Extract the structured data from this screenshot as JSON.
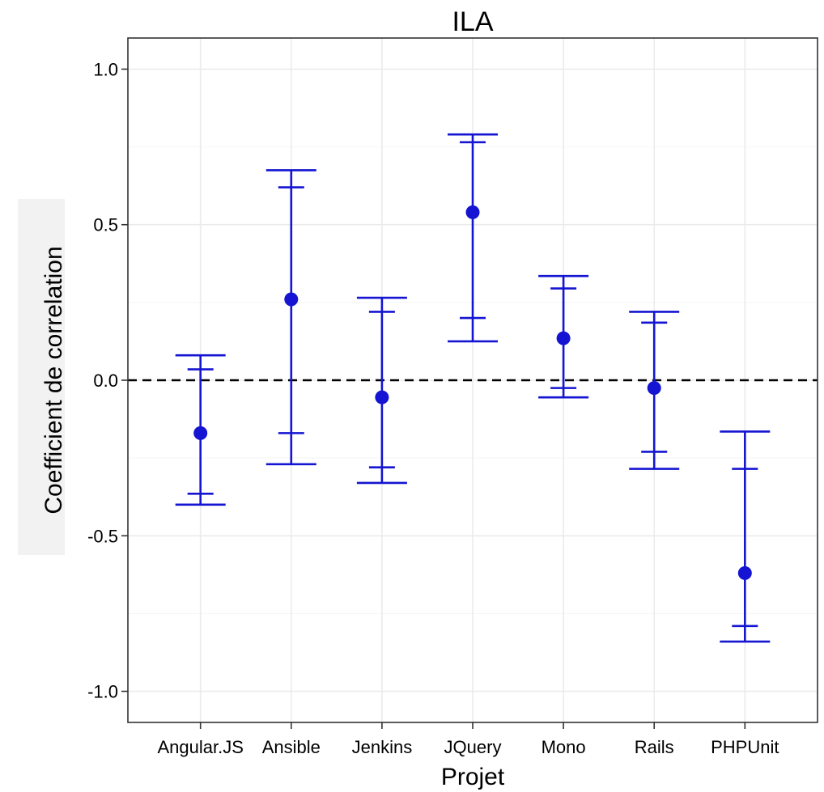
{
  "chart_data": {
    "type": "errorbar",
    "title": "ILA",
    "xlabel": "Projet",
    "ylabel": "Coefficient de correlation",
    "ylim": [
      -1.1,
      1.1
    ],
    "yticks": [
      -1.0,
      -0.5,
      0.0,
      0.5,
      1.0
    ],
    "ytick_labels": [
      "-1.0",
      "-0.5",
      "0.0",
      "0.5",
      "1.0"
    ],
    "reference_line": 0.0,
    "grid": true,
    "categories": [
      "Angular.JS",
      "Ansible",
      "Jenkins",
      "JQuery",
      "Mono",
      "Rails",
      "PHPUnit"
    ],
    "points": [
      {
        "category": "Angular.JS",
        "value": -0.17,
        "inner": [
          -0.365,
          0.035
        ],
        "outer": [
          -0.4,
          0.08
        ]
      },
      {
        "category": "Ansible",
        "value": 0.26,
        "inner": [
          -0.17,
          0.62
        ],
        "outer": [
          -0.27,
          0.675
        ]
      },
      {
        "category": "Jenkins",
        "value": -0.055,
        "inner": [
          -0.28,
          0.22
        ],
        "outer": [
          -0.33,
          0.265
        ]
      },
      {
        "category": "JQuery",
        "value": 0.54,
        "inner": [
          0.2,
          0.765
        ],
        "outer": [
          0.125,
          0.79
        ]
      },
      {
        "category": "Mono",
        "value": 0.135,
        "inner": [
          -0.025,
          0.295
        ],
        "outer": [
          -0.055,
          0.335
        ]
      },
      {
        "category": "Rails",
        "value": -0.025,
        "inner": [
          -0.23,
          0.185
        ],
        "outer": [
          -0.285,
          0.22
        ]
      },
      {
        "category": "PHPUnit",
        "value": -0.62,
        "inner": [
          -0.79,
          -0.285
        ],
        "outer": [
          -0.84,
          -0.165
        ]
      }
    ],
    "colors": {
      "series": "#1414d2",
      "reference_line": "#000000",
      "grid": "#ebebeb",
      "panel_border": "#333333"
    }
  }
}
